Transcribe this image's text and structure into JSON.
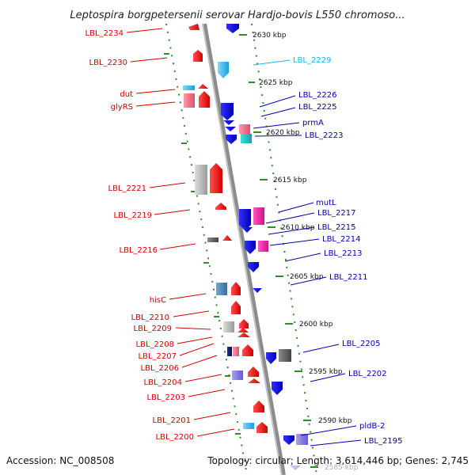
{
  "title": "Leptospira borgpetersenii serovar Hardjo-bovis L550 chromoso...",
  "footer": {
    "accession": "Accession: NC_008508",
    "summary": "Topology: circular; Length: 3,614,446 bp; Genes: 2,745"
  },
  "ticks": [
    "2630 kbp",
    "2625 kbp",
    "2620 kbp",
    "2615 kbp",
    "2610 kbp",
    "2605 kbp",
    "2600 kbp",
    "2595 kbp",
    "2590 kbp",
    "2585 kbp"
  ],
  "left_labels": [
    "LBL_2234",
    "LBL_2230",
    "dut",
    "glyRS",
    "LBL_2221",
    "LBL_2219",
    "LBL_2216",
    "hisC",
    "LBL_2210",
    "LBL_2209",
    "LBL_2208",
    "LBL_2207",
    "LBL_2206",
    "LBL_2204",
    "LBL_2203",
    "LBL_2201",
    "LBL_2200"
  ],
  "right_labels": [
    "LBL_2229",
    "LBL_2226",
    "LBL_2225",
    "prmA",
    "LBL_2223",
    "mutL",
    "LBL_2217",
    "LBL_2215",
    "LBL_2214",
    "LBL_2213",
    "LBL_2211",
    "LBL_2205",
    "LBL_2202",
    "pldB-2",
    "LBL_2195"
  ],
  "colors": {
    "forward": "#ff1a1a",
    "reverse": "#1010e0",
    "backbone": "#8c8c8c",
    "ruler": "#2e8b2e",
    "label_left": "#d40000",
    "label_right": "#0000b0",
    "label_cyan": "#1ab2e6"
  }
}
